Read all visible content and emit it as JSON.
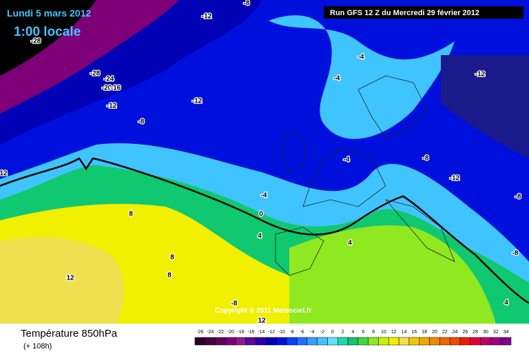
{
  "header": {
    "date": "Lundi 5 mars 2012",
    "time": "1:00 locale",
    "run": "Run GFS 12 Z du Mercredi 29 février 2012"
  },
  "copyright": "Copyright © 2011 Meteociel.fr",
  "footer": {
    "title": "Température 850hPa",
    "lead": "(+ 108h)"
  },
  "contour_labels": [
    "-12",
    "-8",
    "-28",
    "-28",
    "-24",
    "-20",
    "-16",
    "-12",
    "-8",
    "-12",
    "-4",
    "-4",
    "-12",
    "-4",
    "-8",
    "-12",
    "-8",
    "12",
    "-4",
    "0",
    "4",
    "8",
    "4",
    "8",
    "8",
    "12",
    "-8",
    "4",
    "-8",
    "12"
  ],
  "legend": {
    "stops": [
      {
        "value": -26,
        "color": "#2a0024"
      },
      {
        "value": -24,
        "color": "#45003f"
      },
      {
        "value": -22,
        "color": "#60005a"
      },
      {
        "value": -20,
        "color": "#7d0078"
      },
      {
        "value": -18,
        "color": "#8e1a90"
      },
      {
        "value": -16,
        "color": "#5a0aa0"
      },
      {
        "value": -14,
        "color": "#2a00a8"
      },
      {
        "value": -12,
        "color": "#0000b4"
      },
      {
        "value": -10,
        "color": "#0010dc"
      },
      {
        "value": -8,
        "color": "#0a40ff"
      },
      {
        "value": -6,
        "color": "#2070ff"
      },
      {
        "value": -4,
        "color": "#3a9cff"
      },
      {
        "value": -2,
        "color": "#40c4ff"
      },
      {
        "value": 0,
        "color": "#60e4f8"
      },
      {
        "value": 2,
        "color": "#20d8b0"
      },
      {
        "value": 4,
        "color": "#10c870"
      },
      {
        "value": 6,
        "color": "#40d840"
      },
      {
        "value": 8,
        "color": "#90e820"
      },
      {
        "value": 10,
        "color": "#c8f000"
      },
      {
        "value": 12,
        "color": "#f0f000"
      },
      {
        "value": 14,
        "color": "#f0e050"
      },
      {
        "value": 16,
        "color": "#f0c800"
      },
      {
        "value": 18,
        "color": "#f0a800"
      },
      {
        "value": 20,
        "color": "#f08800"
      },
      {
        "value": 22,
        "color": "#f06800"
      },
      {
        "value": 24,
        "color": "#f04800"
      },
      {
        "value": 26,
        "color": "#f01800"
      },
      {
        "value": 28,
        "color": "#e00040"
      },
      {
        "value": 30,
        "color": "#c00060"
      },
      {
        "value": 32,
        "color": "#a00080"
      },
      {
        "value": 34,
        "color": "#800090"
      }
    ]
  }
}
